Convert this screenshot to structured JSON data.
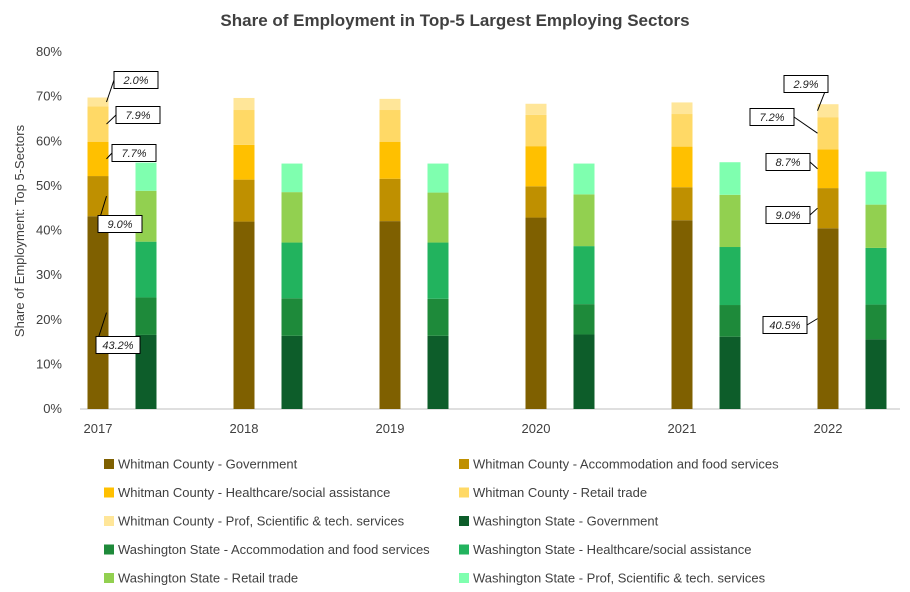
{
  "chart_data": {
    "type": "bar",
    "stacked": true,
    "title": "Share of Employment in Top-5 Largest Employing Sectors",
    "ylabel": "Share of Employment: Top 5-Sectors",
    "ylim": [
      0,
      80
    ],
    "yticks": [
      "0%",
      "10%",
      "20%",
      "30%",
      "40%",
      "50%",
      "60%",
      "70%",
      "80%"
    ],
    "categories": [
      "2017",
      "2018",
      "2019",
      "2020",
      "2021",
      "2022"
    ],
    "groups": [
      {
        "name": "Whitman County",
        "series": [
          {
            "name": "Whitman County - Government",
            "color": "#7f6000",
            "values": [
              43.2,
              42.0,
              42.1,
              42.9,
              42.3,
              40.5
            ]
          },
          {
            "name": "Whitman County - Accommodation and food services",
            "color": "#bf9000",
            "values": [
              9.0,
              9.4,
              9.5,
              7.0,
              7.4,
              9.0
            ]
          },
          {
            "name": "Whitman County - Healthcare/social assistance",
            "color": "#ffc000",
            "values": [
              7.7,
              7.8,
              8.3,
              9.0,
              9.1,
              8.7
            ]
          },
          {
            "name": "Whitman County - Retail trade",
            "color": "#ffd966",
            "values": [
              7.9,
              7.8,
              7.1,
              7.0,
              7.3,
              7.2
            ]
          },
          {
            "name": "Whitman County - Prof, Scientific & tech. services",
            "color": "#ffe699",
            "values": [
              2.0,
              2.7,
              2.5,
              2.5,
              2.6,
              2.9
            ]
          }
        ]
      },
      {
        "name": "Washington State",
        "series": [
          {
            "name": "Washington State - Government",
            "color": "#0d5d2a",
            "values": [
              16.6,
              16.4,
              16.4,
              16.7,
              16.2,
              15.6
            ]
          },
          {
            "name": "Washington State - Accommodation and food services",
            "color": "#1e8a3a",
            "values": [
              8.4,
              8.4,
              8.3,
              6.8,
              7.1,
              7.8
            ]
          },
          {
            "name": "Washington State - Healthcare/social assistance",
            "color": "#22b35e",
            "values": [
              12.5,
              12.5,
              12.6,
              13.0,
              13.0,
              12.7
            ]
          },
          {
            "name": "Washington State - Retail trade",
            "color": "#92d050",
            "values": [
              11.4,
              11.3,
              11.2,
              11.6,
              11.7,
              9.7
            ]
          },
          {
            "name": "Washington State - Prof, Scientific & tech. services",
            "color": "#7fffaf",
            "values": [
              6.3,
              6.4,
              6.5,
              6.9,
              7.3,
              7.4
            ]
          }
        ]
      }
    ],
    "annotations": [
      {
        "category": "2017",
        "group": "Whitman County",
        "series": "Whitman County - Prof, Scientific & tech. services",
        "text": "2.0%"
      },
      {
        "category": "2017",
        "group": "Whitman County",
        "series": "Whitman County - Retail trade",
        "text": "7.9%"
      },
      {
        "category": "2017",
        "group": "Whitman County",
        "series": "Whitman County - Healthcare/social assistance",
        "text": "7.7%"
      },
      {
        "category": "2017",
        "group": "Whitman County",
        "series": "Whitman County - Accommodation and food services",
        "text": "9.0%"
      },
      {
        "category": "2017",
        "group": "Whitman County",
        "series": "Whitman County - Government",
        "text": "43.2%"
      },
      {
        "category": "2022",
        "group": "Whitman County",
        "series": "Whitman County - Prof, Scientific & tech. services",
        "text": "2.9%"
      },
      {
        "category": "2022",
        "group": "Whitman County",
        "series": "Whitman County - Retail trade",
        "text": "7.2%"
      },
      {
        "category": "2022",
        "group": "Whitman County",
        "series": "Whitman County - Healthcare/social assistance",
        "text": "8.7%"
      },
      {
        "category": "2022",
        "group": "Whitman County",
        "series": "Whitman County - Accommodation and food services",
        "text": "9.0%"
      },
      {
        "category": "2022",
        "group": "Whitman County",
        "series": "Whitman County - Government",
        "text": "40.5%"
      }
    ],
    "legend_position": "bottom",
    "grid": false
  }
}
